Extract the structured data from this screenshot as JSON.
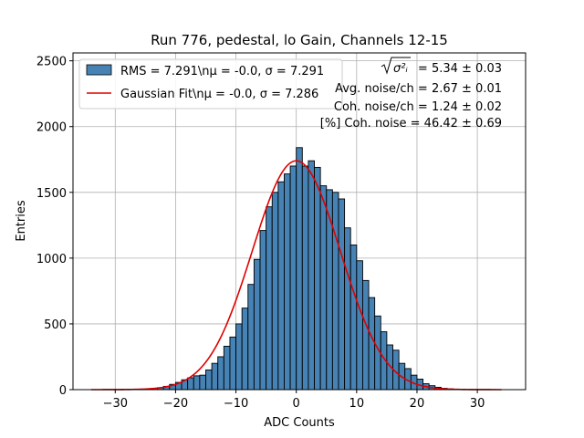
{
  "chart_data": {
    "type": "bar",
    "title": "Run 776, pedestal, lo Gain, Channels 12-15",
    "xlabel": "ADC Counts",
    "ylabel": "Entries",
    "xlim": [
      -37,
      38
    ],
    "ylim": [
      0,
      2560
    ],
    "xticks": [
      -30,
      -20,
      -10,
      0,
      10,
      20,
      30
    ],
    "yticks": [
      0,
      500,
      1000,
      1500,
      2000,
      2500
    ],
    "grid": true,
    "legend_position": "top-left",
    "series": [
      {
        "name": "RMS = 7.291\\nμ = -0.0, σ = 7.291",
        "kind": "histogram",
        "color": "#4682b4",
        "bin_width": 1,
        "bin_starts": [
          -32,
          -31,
          -30,
          -29,
          -28,
          -27,
          -26,
          -25,
          -24,
          -23,
          -22,
          -21,
          -20,
          -19,
          -18,
          -17,
          -16,
          -15,
          -14,
          -13,
          -12,
          -11,
          -10,
          -9,
          -8,
          -7,
          -6,
          -5,
          -4,
          -3,
          -2,
          -1,
          0,
          1,
          2,
          3,
          4,
          5,
          6,
          7,
          8,
          9,
          10,
          11,
          12,
          13,
          14,
          15,
          16,
          17,
          18,
          19,
          20,
          21,
          22,
          23,
          24,
          25,
          26,
          27,
          28,
          29,
          30,
          31,
          32
        ],
        "values": [
          1,
          1,
          1,
          2,
          2,
          3,
          4,
          6,
          10,
          15,
          25,
          40,
          55,
          75,
          90,
          105,
          110,
          150,
          200,
          250,
          330,
          400,
          500,
          620,
          800,
          990,
          1210,
          1390,
          1500,
          1580,
          1640,
          1700,
          1840,
          1700,
          1740,
          1690,
          1550,
          1520,
          1500,
          1450,
          1230,
          1100,
          980,
          830,
          700,
          560,
          440,
          340,
          300,
          200,
          160,
          110,
          80,
          45,
          30,
          18,
          10,
          6,
          3,
          2,
          1,
          1,
          1,
          1,
          1
        ]
      },
      {
        "name": "Gaussian Fit\\nμ = -0.0, σ = 7.286",
        "kind": "line",
        "color": "#e00000",
        "mu": 0.0,
        "sigma": 7.286,
        "amplitude": 1740,
        "x_range": [
          -34,
          34
        ]
      }
    ],
    "annotations": [
      {
        "id": "sigma_total",
        "label": "σ²ᵢ",
        "value": "= 5.34 ± 0.03"
      },
      {
        "id": "avg_noise",
        "text": "Avg. noise/ch = 2.67 ± 0.01"
      },
      {
        "id": "coh_noise",
        "text": "Coh. noise/ch = 1.24 ± 0.02"
      },
      {
        "id": "pct_coh",
        "text": "[%] Coh. noise = 46.42 ± 0.69"
      }
    ]
  }
}
